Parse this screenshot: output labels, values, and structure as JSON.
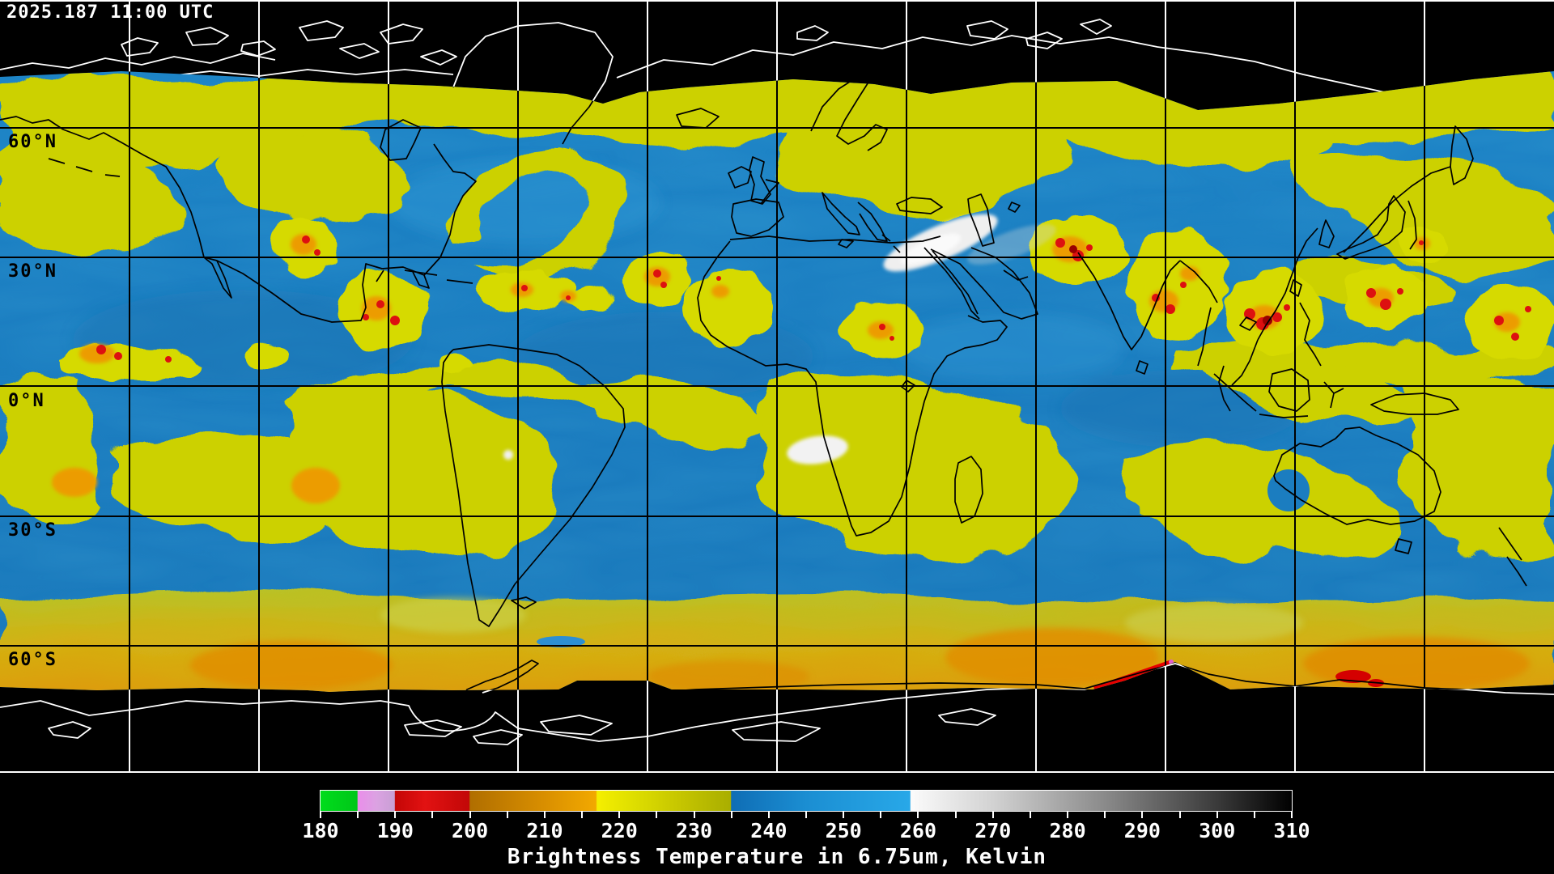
{
  "header": {
    "timestamp": "2025.187 11:00 UTC"
  },
  "map": {
    "projection": "equirectangular-global-composite",
    "latitude_labels": [
      {
        "text": "60°N"
      },
      {
        "text": "30°N"
      },
      {
        "text": "0°N"
      },
      {
        "text": "30°S"
      },
      {
        "text": "60°S"
      }
    ],
    "grid": {
      "lat_spacing_deg": 30,
      "lon_spacing_deg": 30
    },
    "palette": {
      "dry_blue": "#1b7ec0",
      "moist_yellow": "#d2d600",
      "cold_orange": "#e89800",
      "very_cold_red": "#dd1010",
      "warm_white": "#f0f0f0",
      "background": "#000000",
      "coastline_on_data": "#000000",
      "coastline_on_space": "#ffffff"
    }
  },
  "colorbar": {
    "title": "Brightness Temperature in 6.75um, Kelvin",
    "min": 180,
    "max": 310,
    "minor_tick_step": 5,
    "major_tick_step": 10,
    "tick_labels": [
      "180",
      "190",
      "200",
      "210",
      "220",
      "230",
      "240",
      "250",
      "260",
      "270",
      "280",
      "290",
      "300",
      "310"
    ],
    "gradient_stops": [
      {
        "value": 180,
        "color": "#00dd1c"
      },
      {
        "value": 184.9,
        "color": "#00c618"
      },
      {
        "value": 185,
        "color": "#ea8eea"
      },
      {
        "value": 187.5,
        "color": "#dba2e2"
      },
      {
        "value": 189.9,
        "color": "#c89fd4"
      },
      {
        "value": 190,
        "color": "#c40606"
      },
      {
        "value": 194,
        "color": "#e21212"
      },
      {
        "value": 199.9,
        "color": "#c20707"
      },
      {
        "value": 200,
        "color": "#b06e00"
      },
      {
        "value": 210,
        "color": "#d98f00"
      },
      {
        "value": 216.9,
        "color": "#f2a900"
      },
      {
        "value": 217,
        "color": "#f5ef00"
      },
      {
        "value": 222,
        "color": "#dede00"
      },
      {
        "value": 229,
        "color": "#c2c200"
      },
      {
        "value": 234.9,
        "color": "#a9ae00"
      },
      {
        "value": 235,
        "color": "#0f6db5"
      },
      {
        "value": 245,
        "color": "#1b8ed2"
      },
      {
        "value": 258.9,
        "color": "#28a8e8"
      },
      {
        "value": 259,
        "color": "#fbfbfb"
      },
      {
        "value": 270,
        "color": "#d2d2d2"
      },
      {
        "value": 285,
        "color": "#8a8a8a"
      },
      {
        "value": 300,
        "color": "#3a3a3a"
      },
      {
        "value": 310,
        "color": "#000000"
      }
    ]
  }
}
